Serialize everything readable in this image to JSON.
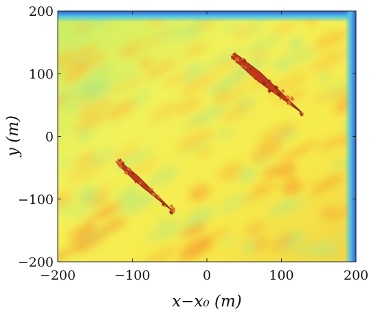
{
  "chart_data": {
    "type": "heatmap",
    "title": "",
    "xlabel": "x−x₀ (m)",
    "ylabel": "y (m)",
    "xlim": [
      -200,
      200
    ],
    "ylim": [
      -200,
      200
    ],
    "x_ticks": [
      -200,
      -100,
      0,
      100,
      200
    ],
    "y_ticks": [
      -200,
      -100,
      0,
      100,
      200
    ],
    "x_tick_labels": [
      "−200",
      "−100",
      "0",
      "100",
      "200"
    ],
    "y_tick_labels": [
      "−200",
      "−100",
      "0",
      "100",
      "200"
    ],
    "colormap": "jet",
    "background_color_range": [
      "#3a6fe0",
      "#ffcc33"
    ],
    "targets": [
      {
        "x": [
          35,
          130
        ],
        "y": [
          130,
          35
        ],
        "color": "#c0391f"
      },
      {
        "x": [
          -120,
          -45
        ],
        "y": [
          -40,
          -120
        ],
        "color": "#c0391f"
      }
    ],
    "grid": false
  }
}
